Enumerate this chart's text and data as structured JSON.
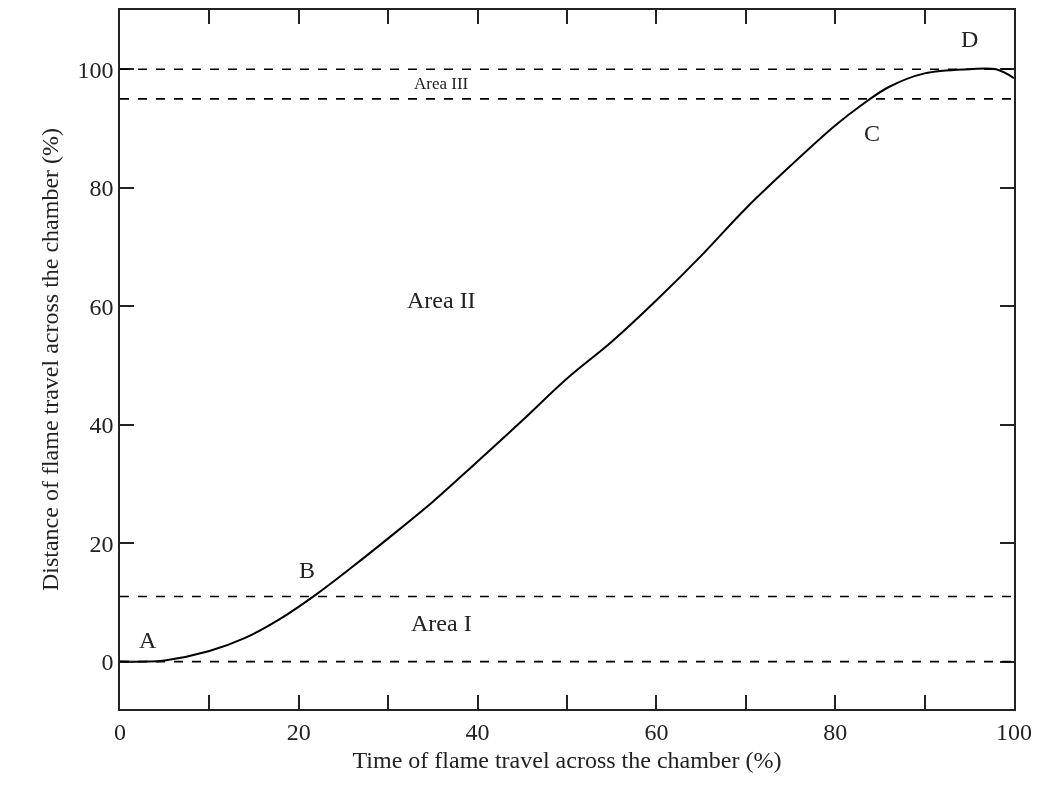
{
  "chart_data": {
    "type": "line",
    "xlabel": "Time of flame travel across the chamber (%)",
    "ylabel": "Distance of flame travel across the chamber (%)",
    "xlim": [
      0,
      100
    ],
    "ylim": [
      -8,
      110
    ],
    "xticks": [
      0,
      {
        "value": 10,
        "label": null
      },
      20,
      {
        "value": 30,
        "label": null
      },
      40,
      {
        "value": 50,
        "label": null
      },
      60,
      {
        "value": 70,
        "label": null
      },
      80,
      {
        "value": 90,
        "label": null
      },
      100
    ],
    "yticks": [
      0,
      20,
      40,
      60,
      80,
      100
    ],
    "grid": false,
    "marker": "none",
    "line_style": "solid",
    "series": [
      {
        "color": "#000000",
        "x": [
          0,
          3,
          5,
          10,
          14,
          18,
          22,
          26,
          30,
          35,
          40,
          45,
          50,
          55,
          60,
          65,
          70,
          75,
          80,
          83,
          86,
          90,
          95,
          98,
          100
        ],
        "values": [
          0,
          0,
          0.2,
          1.8,
          4,
          7.3,
          11.4,
          16,
          20.8,
          27,
          33.8,
          40.7,
          47.8,
          54,
          61,
          68.5,
          76.5,
          83.7,
          90.5,
          94,
          97,
          99.3,
          100,
          100,
          98.5
        ]
      }
    ],
    "ref_lines": [
      {
        "axis": "y",
        "value": 0,
        "color": "#000000",
        "line_style": "dashed"
      },
      {
        "axis": "y",
        "value": 11,
        "color": "#000000",
        "line_style": "dashed"
      },
      {
        "axis": "y",
        "value": 95,
        "color": "#000000",
        "line_style": "dashed"
      },
      {
        "axis": "y",
        "value": 100,
        "color": "#000000",
        "line_style": "dashed"
      }
    ],
    "annotations": [
      "Area I",
      "Area II",
      "Area III",
      {
        "text": "A",
        "x": 0,
        "y": 0
      },
      {
        "text": "B",
        "x": 22,
        "y": 11.4
      },
      {
        "text": "C",
        "x": 83,
        "y": 94
      },
      {
        "text": "D",
        "x": 95,
        "y": 100
      }
    ]
  }
}
